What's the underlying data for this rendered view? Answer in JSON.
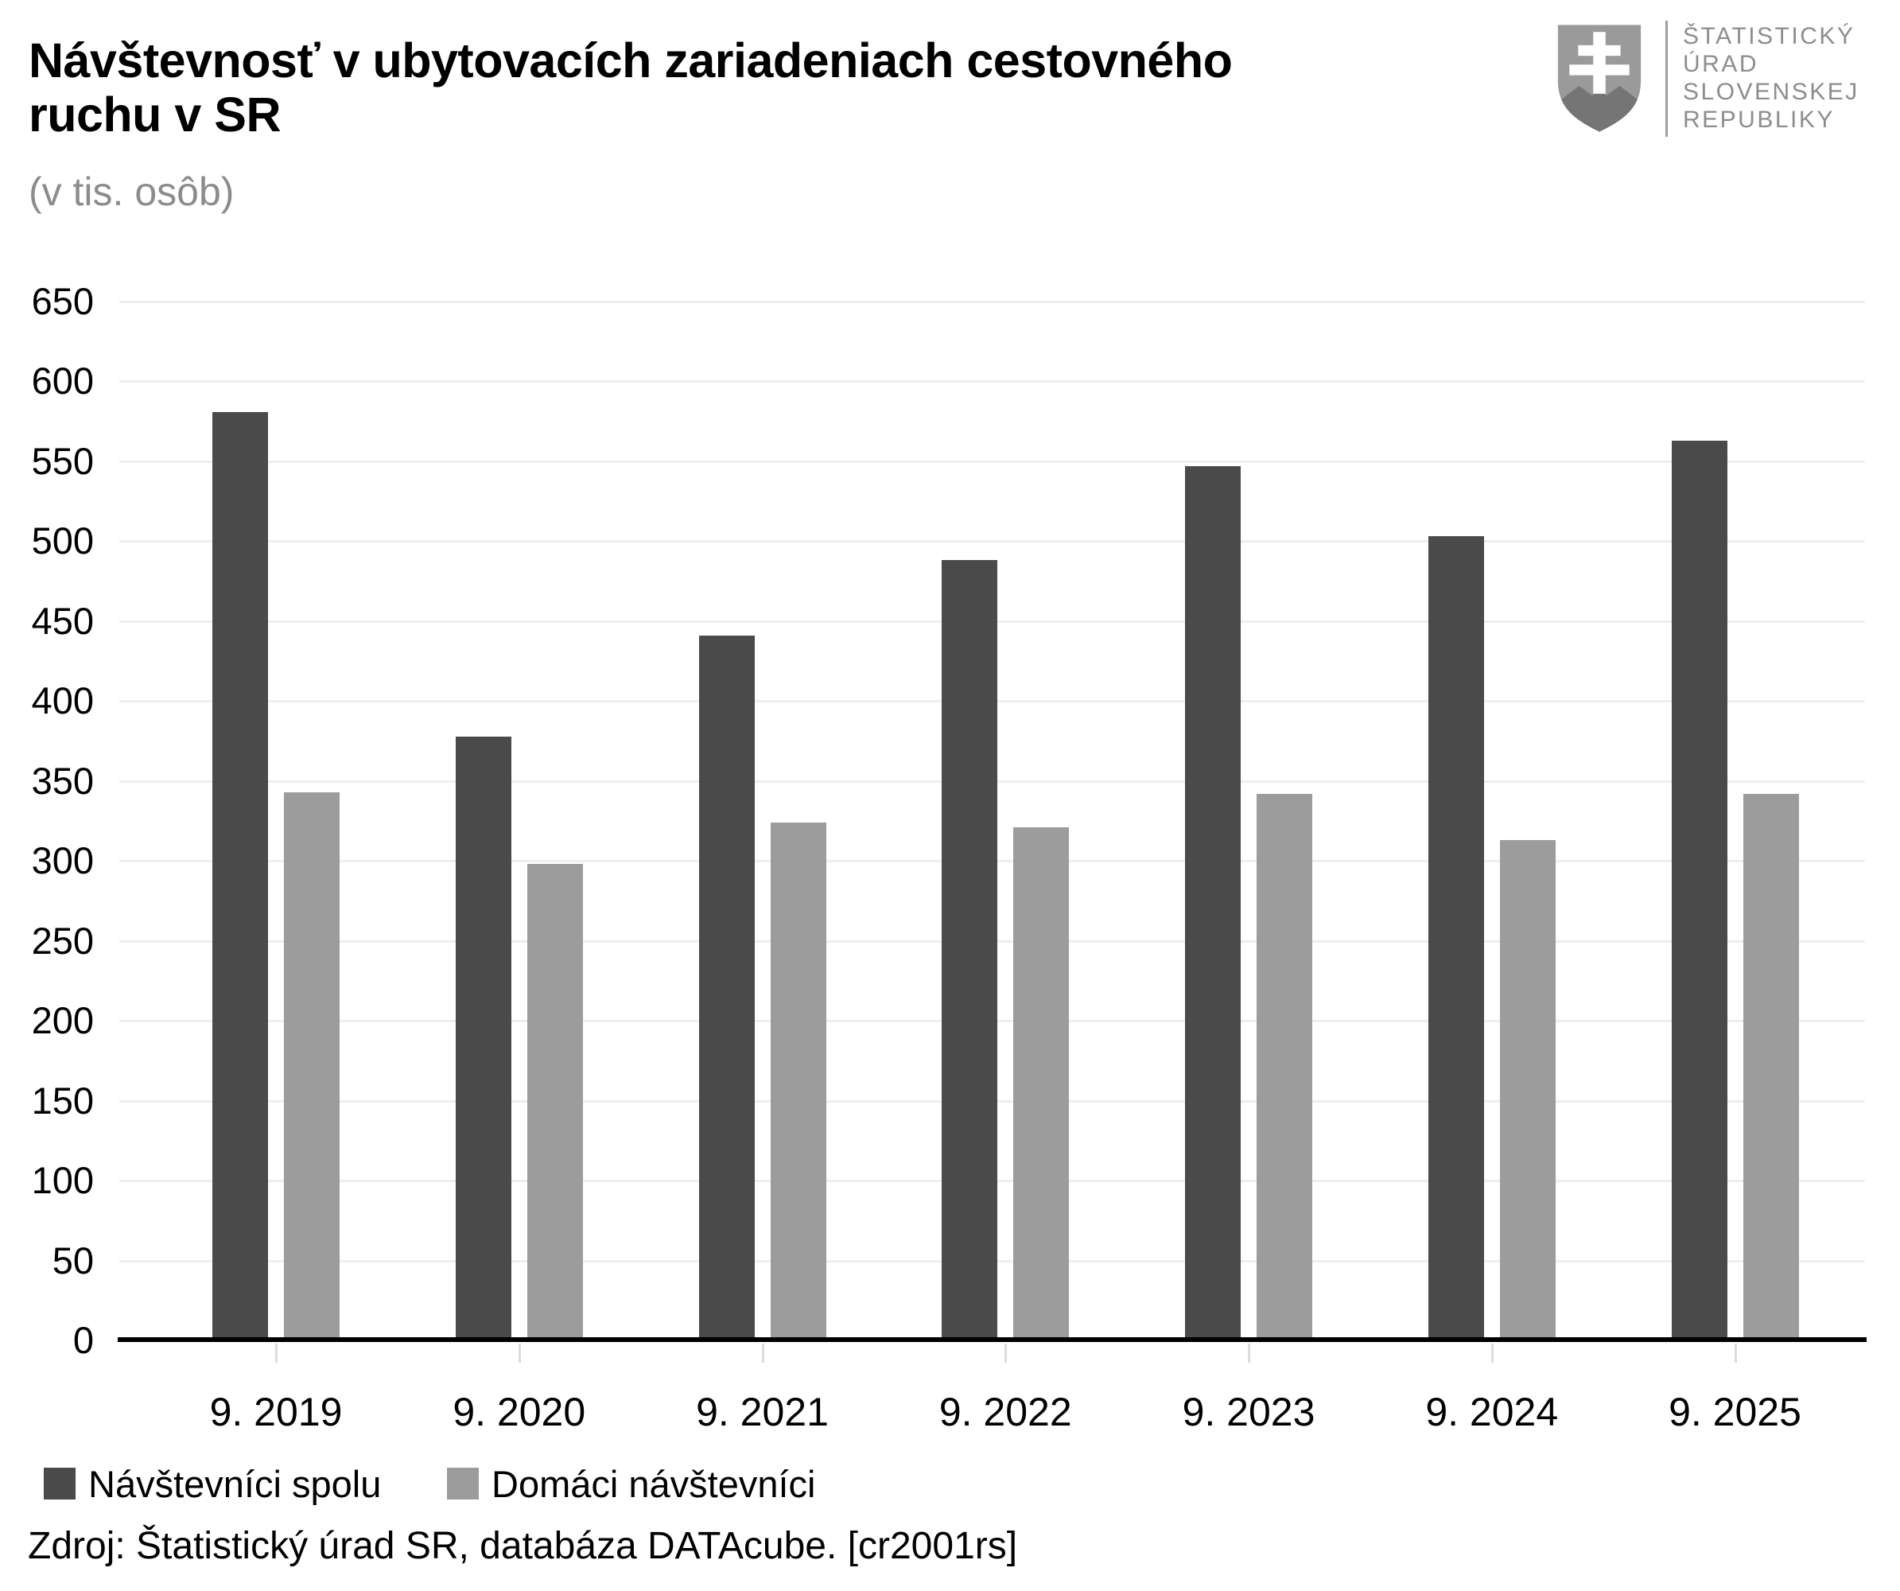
{
  "title": {
    "line1": "Návštevnosť v ubytovacích zariadeniach cestovného",
    "line2": "ruchu v SR",
    "subtitle": "(v tis. osôb)"
  },
  "logo": {
    "name": "Štatistický úrad Slovenskej republiky",
    "lines": [
      "ŠTATISTICKÝ",
      "ÚRAD",
      "SLOVENSKEJ",
      "REPUBLIKY"
    ]
  },
  "source_note": "Zdroj: Štatistický úrad SR, databáza DATAcube. [cr2001rs]",
  "colors": {
    "total_bar": "#4a4a4a",
    "domestic_bar": "#9c9c9c",
    "gridline": "#eeeeee",
    "axis": "#000000",
    "category_tick": "#dcdcdc",
    "subtitle_gray": "#8c8c8c",
    "logo_gray": "#8d8d8d",
    "shield_light": "#9a9a9a",
    "shield_dark": "#757575"
  },
  "chart_data": {
    "type": "bar",
    "title": "Návštevnosť v ubytovacích zariadeniach cestovného ruchu v SR",
    "subtitle": "(v tis. osôb)",
    "unit": "tis. osôb",
    "categories": [
      "9. 2019",
      "9. 2020",
      "9. 2021",
      "9. 2022",
      "9. 2023",
      "9. 2024",
      "9. 2025"
    ],
    "series": [
      {
        "name": "Návštevníci spolu",
        "color": "#4a4a4a",
        "values": [
          581,
          378,
          441,
          488,
          547,
          503,
          563
        ]
      },
      {
        "name": "Domáci návštevníci",
        "color": "#9c9c9c",
        "values": [
          343,
          298,
          324,
          321,
          342,
          313,
          342
        ]
      }
    ],
    "ylim": [
      0,
      650
    ],
    "ytick_step": 50,
    "grid": true,
    "legend_position": "bottom-left"
  }
}
